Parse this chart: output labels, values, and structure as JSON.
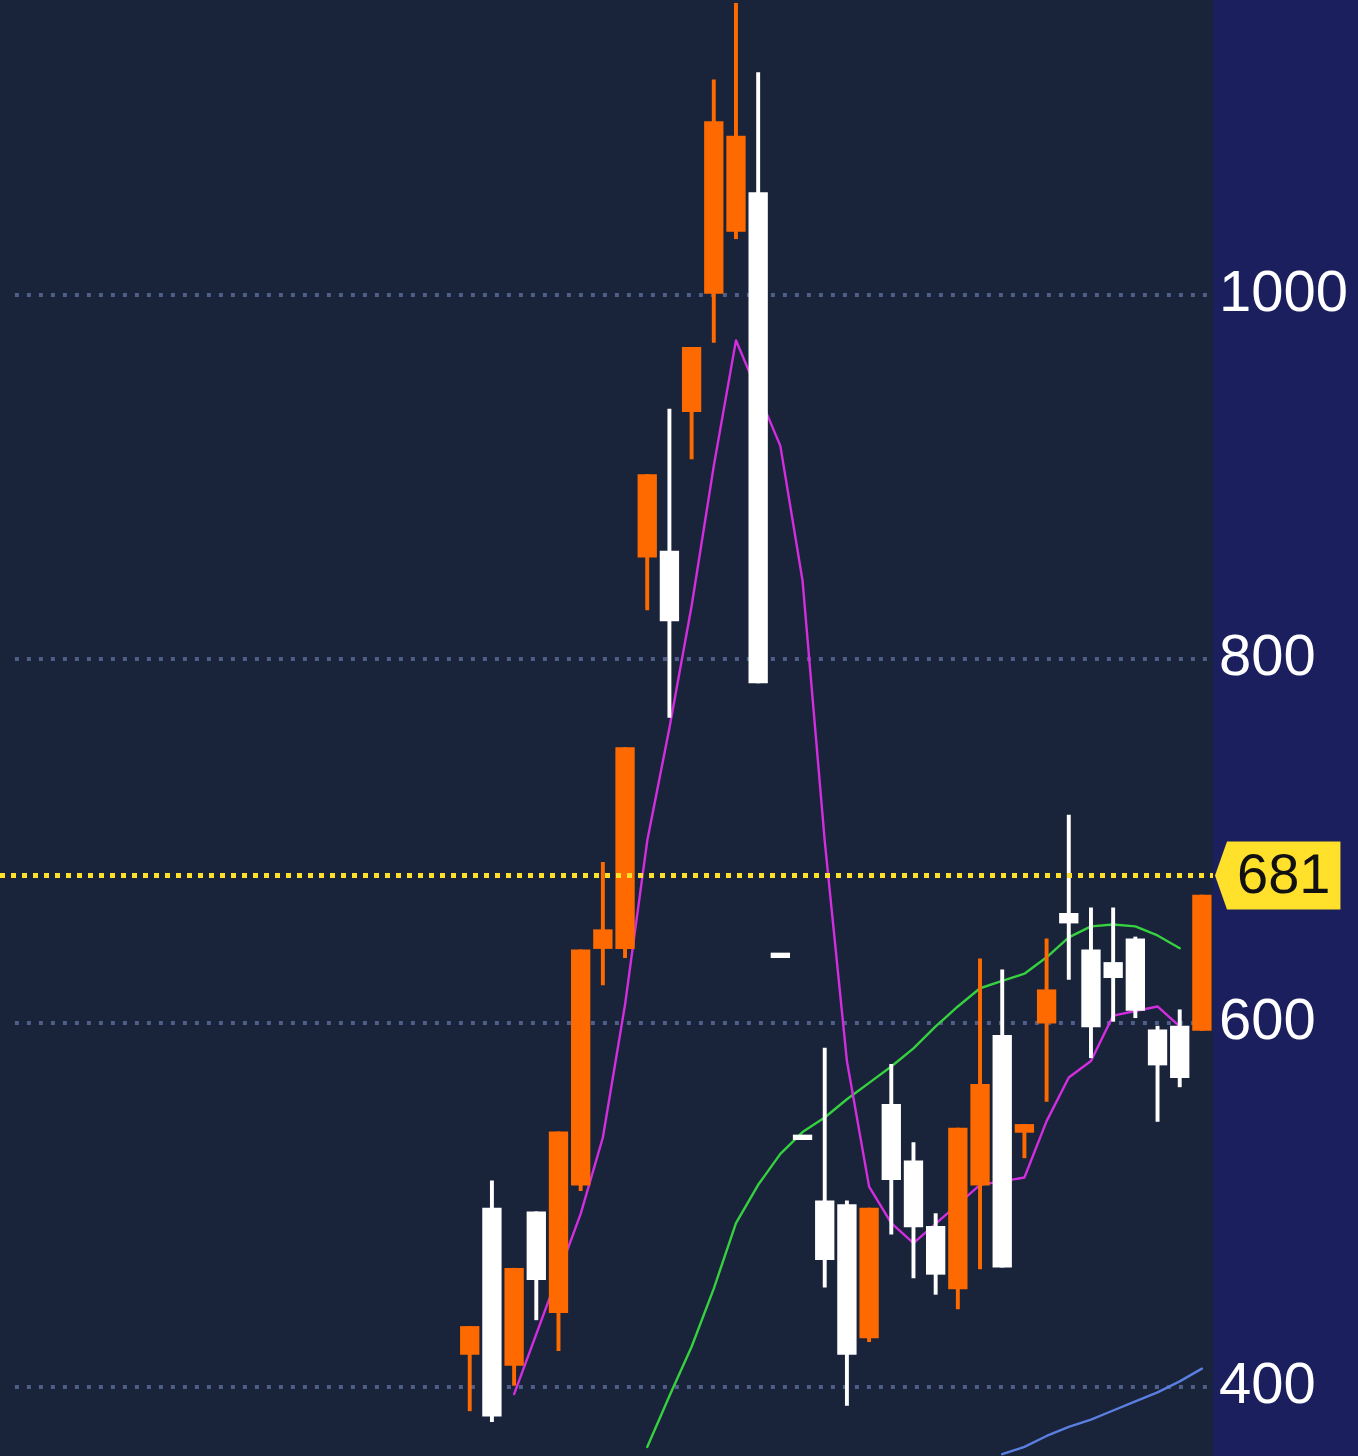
{
  "chart_data": {
    "type": "candlestick",
    "categories": [
      null,
      null,
      null,
      null,
      null,
      null,
      null,
      null,
      null,
      null,
      null,
      null,
      null,
      null,
      null,
      null,
      null,
      null,
      null,
      null,
      null,
      null,
      null,
      null,
      null,
      null,
      null,
      null,
      null,
      null,
      null,
      null,
      null,
      null,
      null,
      null,
      null,
      null,
      null,
      null,
      null,
      null,
      null,
      null,
      null,
      null,
      null,
      null,
      null,
      null,
      null,
      null,
      null,
      null
    ],
    "ohlc": [
      null,
      null,
      null,
      null,
      null,
      null,
      null,
      null,
      null,
      null,
      null,
      null,
      null,
      null,
      null,
      null,
      null,
      null,
      null,
      null,
      [
        418,
        433,
        387,
        433
      ],
      [
        498,
        513,
        381,
        384
      ],
      [
        412,
        465,
        401,
        465
      ],
      [
        496,
        496,
        437,
        459
      ],
      [
        441,
        540,
        420,
        540
      ],
      [
        511,
        640,
        508,
        640
      ],
      [
        641,
        688,
        621,
        651
      ],
      [
        641,
        751,
        636,
        751
      ],
      [
        856,
        901,
        827,
        901
      ],
      [
        859,
        937,
        768,
        821
      ],
      [
        936,
        971,
        910,
        971
      ],
      [
        1001,
        1118,
        974,
        1095
      ],
      [
        1035,
        1160,
        1031,
        1087
      ],
      [
        1056,
        1122,
        787,
        787
      ],
      [
        636,
        636,
        636,
        636
      ],
      [
        536,
        536,
        536,
        536
      ],
      [
        502,
        586,
        455,
        470
      ],
      [
        500,
        502,
        390,
        418
      ],
      [
        427,
        498,
        425,
        498
      ],
      [
        555,
        577,
        484,
        514
      ],
      [
        524,
        534,
        460,
        488
      ],
      [
        488,
        495,
        451,
        462
      ],
      [
        454,
        542,
        443,
        542
      ],
      [
        511,
        635,
        465,
        566
      ],
      [
        593,
        629,
        466,
        466
      ],
      [
        540,
        544,
        526,
        544
      ],
      [
        600,
        646,
        557,
        618
      ],
      [
        660,
        714,
        624,
        655
      ],
      [
        640,
        663,
        581,
        598
      ],
      [
        633,
        663,
        601,
        625
      ],
      [
        646,
        647,
        603,
        607
      ],
      [
        596,
        598,
        546,
        577
      ],
      [
        598,
        607,
        565,
        570
      ],
      [
        596,
        670,
        596,
        670
      ]
    ],
    "colors": [
      null,
      null,
      null,
      null,
      null,
      null,
      null,
      null,
      null,
      null,
      null,
      null,
      null,
      null,
      null,
      null,
      null,
      null,
      null,
      null,
      "#ff6a00",
      "#ffffff",
      "#ff6a00",
      "#ffffff",
      "#ff6a00",
      "#ff6a00",
      "#ff6a00",
      "#ff6a00",
      "#ff6a00",
      "#ffffff",
      "#ff6a00",
      "#ff6a00",
      "#ff6a00",
      "#ffffff",
      "#ffffff",
      "#ffffff",
      "#ffffff",
      "#ffffff",
      "#ff6a00",
      "#ffffff",
      "#ffffff",
      "#ffffff",
      "#ff6a00",
      "#ff6a00",
      "#ffffff",
      "#ff6a00",
      "#ff6a00",
      "#ffffff",
      "#ffffff",
      "#ffffff",
      "#ffffff",
      "#ffffff",
      "#ffffff",
      "#ff6a00"
    ],
    "series": [
      {
        "type": "line",
        "color": "#d22ee0",
        "values": [
          null,
          null,
          null,
          null,
          null,
          null,
          null,
          null,
          null,
          null,
          null,
          null,
          null,
          null,
          null,
          null,
          null,
          null,
          null,
          null,
          null,
          null,
          396,
          429,
          null,
          495,
          537,
          610,
          700,
          762,
          829,
          906,
          975,
          null,
          917,
          843,
          700,
          579,
          510,
          490,
          479,
          null,
          null,
          511,
          null,
          515,
          546,
          570,
          579,
          604,
          null,
          609,
          598,
          null
        ]
      },
      {
        "type": "line",
        "color": "#36d13e",
        "values": [
          null,
          null,
          null,
          null,
          null,
          null,
          null,
          null,
          null,
          null,
          null,
          null,
          null,
          null,
          null,
          null,
          null,
          null,
          null,
          null,
          null,
          null,
          null,
          null,
          null,
          null,
          null,
          null,
          367,
          395,
          422,
          454,
          490,
          511,
          528,
          540,
          548,
          558,
          567,
          576,
          586,
          598,
          609,
          619,
          623,
          627,
          636,
          647,
          653,
          654,
          653,
          648,
          641,
          null
        ]
      },
      {
        "type": "line",
        "color": "#5b7fe0",
        "values": [
          null,
          null,
          null,
          null,
          null,
          null,
          null,
          null,
          null,
          null,
          null,
          null,
          null,
          null,
          null,
          null,
          null,
          null,
          null,
          null,
          null,
          null,
          null,
          null,
          null,
          null,
          null,
          null,
          null,
          null,
          null,
          null,
          null,
          null,
          null,
          null,
          null,
          null,
          null,
          null,
          null,
          null,
          null,
          null,
          363,
          367,
          373,
          378,
          382,
          387,
          392,
          397,
          403,
          410
        ]
      }
    ],
    "ylim": [
      362,
      1162
    ],
    "yticks": [
      400,
      600,
      800,
      1000
    ],
    "grid": "y",
    "tick_labels": "y",
    "marker": "none",
    "ref_lines": [
      {
        "axis": "y",
        "value": 681,
        "label": "681",
        "color": "#ffe02a",
        "line_style": "dotted"
      }
    ]
  }
}
